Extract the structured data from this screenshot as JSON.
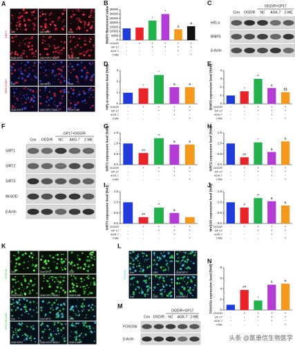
{
  "panel_letters": [
    "A",
    "B",
    "C",
    "D",
    "E",
    "F",
    "G",
    "H",
    "I",
    "J",
    "K",
    "L",
    "M",
    "N"
  ],
  "microscopy": [
    {
      "row_labels": [
        "BNIP3",
        "BNIP3+DAPI"
      ],
      "image_labels": [
        "Con",
        "Con+GP17",
        "OGD",
        "OGD+GP17",
        "OGD+GP17+AGK-7",
        "OGD+2-ME"
      ]
    },
    {
      "row_labels": [
        "FOXO3A",
        "FOXO3A+DAPI"
      ],
      "image_labels": [
        "Con",
        "Con+GP17",
        "OGD",
        "OGD+GP17",
        "OGD+GP17+AGK-7",
        "OGD+2-ME"
      ]
    },
    {
      "row_labels": [
        "FOXO3A"
      ],
      "image_labels": [
        "Con",
        "OGD",
        "OGD+GP17"
      ]
    }
  ],
  "blots": [
    {
      "header": "OGD/R+GP17",
      "lanes": [
        "Con",
        "OGD/R",
        "NC",
        "AGK-7",
        "2-ME"
      ],
      "rows": [
        "Hif1-α",
        "BNIP3",
        "β-Actin"
      ]
    },
    {
      "header": "GP17+OGD/R",
      "lanes": [
        "Con",
        "OGD/R",
        "NC",
        "AKG-7",
        "2-ME"
      ],
      "rows": [
        "SIRT1",
        "SIRT2",
        "SIRT3",
        "MnSOD",
        "β-Actin"
      ]
    },
    {
      "header": "OGD/R+GP17",
      "lanes": [
        "Con",
        "OGD/R",
        "NC",
        "AGK-7",
        "2-ME"
      ],
      "rows": [
        "FOXO3A",
        "β-Actin"
      ]
    }
  ],
  "chart_data": [
    {
      "type": "bar",
      "y_label": "BNIP3 fluorescent value",
      "values": [
        13500,
        14500,
        22500,
        30000,
        12500,
        16000
      ],
      "colors": [
        "#1f3bd8",
        "#e8232a",
        "#22b14c",
        "#b43cd6",
        "#f39a1e",
        "#111111"
      ],
      "markers": [
        null,
        null,
        "*",
        "*",
        "&",
        "&"
      ],
      "ylim": [
        0,
        35000
      ],
      "yticks": [
        0,
        5000,
        10000,
        15000,
        20000,
        25000,
        30000,
        35000
      ],
      "conditions": [
        {
          "name": "OGD/R",
          "signs": [
            "-",
            "+",
            "+",
            "+",
            "+",
            "+"
          ]
        },
        {
          "name": "GP-17",
          "signs": [
            "-",
            "-",
            "+",
            "+",
            "+",
            "+"
          ]
        },
        {
          "name": "AGK-7",
          "signs": [
            "-",
            "-",
            "-",
            "-",
            "+",
            "-"
          ]
        },
        {
          "name": "2-ME",
          "signs": [
            "-",
            "-",
            "-",
            "-",
            "-",
            "+"
          ]
        }
      ]
    },
    {
      "type": "bar",
      "y_label": "Hif1-α expression level (fold)",
      "values": [
        1.0,
        1.4,
        2.6,
        1.5,
        1.5
      ],
      "colors": [
        "#1f3bd8",
        "#e8232a",
        "#22b14c",
        "#b43cd6",
        "#f39a1e"
      ],
      "markers": [
        null,
        "*",
        "*",
        "&",
        "&"
      ],
      "ylim": [
        0,
        3
      ],
      "yticks": [
        0,
        1,
        2,
        3
      ],
      "conditions": [
        {
          "name": "OGD/R",
          "signs": [
            "-",
            "+",
            "+",
            "+",
            "+"
          ]
        },
        {
          "name": "GP-17",
          "signs": [
            "-",
            "-",
            "+",
            "+",
            "+"
          ]
        },
        {
          "name": "AGK-7",
          "signs": [
            "-",
            "-",
            "-",
            "+",
            "-"
          ]
        },
        {
          "name": "2-ME",
          "signs": [
            "-",
            "-",
            "-",
            "-",
            "+"
          ]
        }
      ]
    },
    {
      "type": "bar",
      "y_label": "BNIP3 expression level (fold)",
      "values": [
        1.0,
        1.5,
        3.0,
        1.9,
        1.4
      ],
      "colors": [
        "#1f3bd8",
        "#e8232a",
        "#22b14c",
        "#b43cd6",
        "#f39a1e"
      ],
      "markers": [
        null,
        "*",
        "**",
        "&",
        "$$"
      ],
      "ylim": [
        0,
        4
      ],
      "yticks": [
        0,
        1,
        2,
        3,
        4
      ],
      "conditions": [
        {
          "name": "OGD/R",
          "signs": [
            "-",
            "+",
            "+",
            "+",
            "+"
          ]
        },
        {
          "name": "GP-17",
          "signs": [
            "-",
            "-",
            "+",
            "+",
            "+"
          ]
        },
        {
          "name": "AGK-7",
          "signs": [
            "-",
            "-",
            "-",
            "+",
            "-"
          ]
        },
        {
          "name": "2-ME",
          "signs": [
            "-",
            "-",
            "-",
            "-",
            "+"
          ]
        }
      ]
    },
    {
      "type": "bar",
      "y_label": "SIRT1 expression level (fold)",
      "values": [
        1.0,
        0.55,
        1.25,
        0.95,
        0.95
      ],
      "colors": [
        "#1f3bd8",
        "#e8232a",
        "#22b14c",
        "#b43cd6",
        "#f39a1e"
      ],
      "markers": [
        null,
        "##",
        "**",
        "&",
        "&"
      ],
      "ylim": [
        0,
        1.5
      ],
      "yticks": [
        {
          "value": 0,
          "label": "0.0"
        },
        {
          "value": 0.5,
          "label": "0.5"
        },
        {
          "value": 1,
          "label": "1.0"
        },
        {
          "value": 1.5,
          "label": "1.5"
        }
      ],
      "conditions": [
        {
          "name": "OGD/R",
          "signs": [
            "-",
            "+",
            "+",
            "+",
            "+"
          ]
        },
        {
          "name": "GP-17",
          "signs": [
            "-",
            "-",
            "+",
            "+",
            "+"
          ]
        },
        {
          "name": "AGK-7",
          "signs": [
            "-",
            "-",
            "-",
            "+",
            "-"
          ]
        },
        {
          "name": "2-ME",
          "signs": [
            "-",
            "-",
            "-",
            "-",
            "+"
          ]
        }
      ]
    },
    {
      "type": "bar",
      "y_label": "SIRT2 expression level (fold)",
      "values": [
        1.0,
        0.35,
        1.05,
        0.6,
        1.1
      ],
      "colors": [
        "#1f3bd8",
        "#e8232a",
        "#22b14c",
        "#b43cd6",
        "#f39a1e"
      ],
      "markers": [
        null,
        "##",
        "*",
        "&",
        "&"
      ],
      "ylim": [
        0,
        1.5
      ],
      "yticks": [
        {
          "value": 0,
          "label": "0.0"
        },
        {
          "value": 0.5,
          "label": "0.5"
        },
        {
          "value": 1,
          "label": "1.0"
        },
        {
          "value": 1.5,
          "label": "1.5"
        }
      ],
      "conditions": [
        {
          "name": "OGD/R",
          "signs": [
            "-",
            "+",
            "+",
            "+",
            "+"
          ]
        },
        {
          "name": "GP-17",
          "signs": [
            "-",
            "-",
            "+",
            "+",
            "+"
          ]
        },
        {
          "name": "AGK-7",
          "signs": [
            "-",
            "-",
            "-",
            "+",
            "-"
          ]
        },
        {
          "name": "2-ME",
          "signs": [
            "-",
            "-",
            "-",
            "-",
            "+"
          ]
        }
      ]
    },
    {
      "type": "bar",
      "y_label": "SIRT3 expression level (fold)",
      "values": [
        1.0,
        0.3,
        0.75,
        0.5,
        0.3
      ],
      "colors": [
        "#1f3bd8",
        "#e8232a",
        "#22b14c",
        "#b43cd6",
        "#f39a1e"
      ],
      "markers": [
        null,
        "##",
        "**",
        "&",
        null
      ],
      "ylim": [
        0,
        1.5
      ],
      "yticks": [
        {
          "value": 0,
          "label": "0.0"
        },
        {
          "value": 0.5,
          "label": "0.5"
        },
        {
          "value": 1,
          "label": "1.0"
        },
        {
          "value": 1.5,
          "label": "1.5"
        }
      ],
      "conditions": [
        {
          "name": "OGD/R",
          "signs": [
            "-",
            "+",
            "+",
            "+",
            "+"
          ]
        },
        {
          "name": "GP-17",
          "signs": [
            "-",
            "-",
            "+",
            "+",
            "+"
          ]
        },
        {
          "name": "AGK-7",
          "signs": [
            "-",
            "-",
            "-",
            "+",
            "-"
          ]
        },
        {
          "name": "2-ME",
          "signs": [
            "-",
            "-",
            "-",
            "-",
            "+"
          ]
        }
      ]
    },
    {
      "type": "bar",
      "y_label": "MnSOD expression level (fold)",
      "values": [
        1.0,
        0.75,
        1.2,
        1.05,
        0.85
      ],
      "colors": [
        "#1f3bd8",
        "#e8232a",
        "#22b14c",
        "#b43cd6",
        "#f39a1e"
      ],
      "markers": [
        null,
        "#",
        "**",
        "&",
        "&"
      ],
      "ylim": [
        0,
        1.5
      ],
      "yticks": [
        {
          "value": 0,
          "label": "0.0"
        },
        {
          "value": 0.5,
          "label": "0.5"
        },
        {
          "value": 1,
          "label": "1.0"
        },
        {
          "value": 1.5,
          "label": "1.5"
        }
      ],
      "conditions": [
        {
          "name": "OGD/R",
          "signs": [
            "-",
            "+",
            "+",
            "+",
            "+"
          ]
        },
        {
          "name": "GP-17",
          "signs": [
            "-",
            "-",
            "+",
            "+",
            "+"
          ]
        },
        {
          "name": "AGK-7",
          "signs": [
            "-",
            "-",
            "-",
            "+",
            "-"
          ]
        },
        {
          "name": "2-ME",
          "signs": [
            "-",
            "-",
            "-",
            "-",
            "+"
          ]
        }
      ]
    },
    {
      "type": "bar",
      "y_label": "FOXO3A expression level (fold)",
      "values": [
        1.0,
        3.8,
        1.8,
        4.8,
        5.0
      ],
      "colors": [
        "#1f3bd8",
        "#e8232a",
        "#22b14c",
        "#b43cd6",
        "#f39a1e"
      ],
      "markers": [
        null,
        "##",
        "*",
        "&",
        "&"
      ],
      "ylim": [
        0,
        8
      ],
      "yticks": [
        0,
        2,
        4,
        6,
        8
      ],
      "conditions": [
        {
          "name": "OGD/R",
          "signs": [
            "-",
            "+",
            "+",
            "+",
            "+"
          ]
        },
        {
          "name": "GP-17",
          "signs": [
            "-",
            "-",
            "+",
            "+",
            "+"
          ]
        },
        {
          "name": "AGK-7",
          "signs": [
            "-",
            "-",
            "-",
            "+",
            "-"
          ]
        },
        {
          "name": "2-ME",
          "signs": [
            "-",
            "-",
            "-",
            "-",
            "+"
          ]
        }
      ]
    }
  ],
  "watermark": "头条 @医患信生物医学"
}
